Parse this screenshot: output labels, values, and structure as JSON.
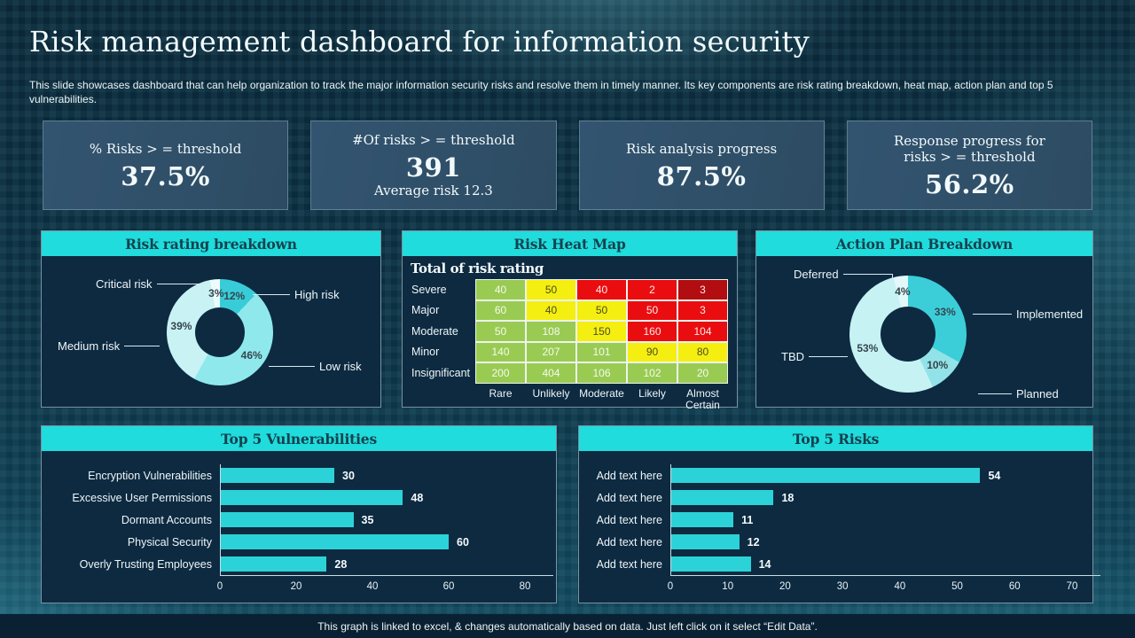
{
  "slide": {
    "title": "Risk management dashboard for information security",
    "subtitle": "This slide showcases dashboard that can help organization to track the major information security risks and resolve them in timely manner. Its key components are risk rating breakdown, heat map, action plan and top 5 vulnerabilities.",
    "footer": "This graph is linked to excel, & changes automatically based on data. Just left click on it select “Edit Data”."
  },
  "kpis": [
    {
      "label": "% Risks > = threshold",
      "value": "37.5%",
      "sub": ""
    },
    {
      "label": "#Of risks > = threshold",
      "value": "391",
      "sub": "Average risk 12.3"
    },
    {
      "label": "Risk analysis progress",
      "value": "87.5%",
      "sub": ""
    },
    {
      "label": "Response progress for risks > = threshold",
      "value": "56.2%",
      "sub": ""
    }
  ],
  "panels": {
    "risk_rating": {
      "title": "Risk rating breakdown"
    },
    "heat_map": {
      "title": "Risk Heat Map"
    },
    "action_plan": {
      "title": "Action Plan Breakdown"
    },
    "top_vulnerabilities": {
      "title": "Top 5 Vulnerabilities"
    },
    "top_risks": {
      "title": "Top 5 Risks"
    }
  },
  "chart_data": [
    {
      "type": "pie",
      "title": "Risk rating breakdown",
      "legend_position": "callouts",
      "slices": [
        {
          "label": "High risk",
          "value": 12,
          "color": "#38ccd8"
        },
        {
          "label": "Low risk",
          "value": 46,
          "color": "#8fe9ec"
        },
        {
          "label": "Medium risk",
          "value": 39,
          "color": "#c9f2f4"
        },
        {
          "label": "Critical risk",
          "value": 3,
          "color": "#edfbfc"
        }
      ]
    },
    {
      "type": "heatmap",
      "title": "Total of risk rating",
      "rows": [
        "Severe",
        "Major",
        "Moderate",
        "Minor",
        "Insignificant"
      ],
      "columns": [
        "Rare",
        "Unlikely",
        "Moderate",
        "Likely",
        "Almost Certain"
      ],
      "values": [
        [
          40,
          50,
          40,
          2,
          3
        ],
        [
          60,
          40,
          50,
          50,
          3
        ],
        [
          50,
          108,
          150,
          160,
          104
        ],
        [
          140,
          207,
          101,
          90,
          80
        ],
        [
          200,
          404,
          106,
          102,
          20
        ]
      ],
      "levels": [
        [
          "g",
          "y",
          "r",
          "r",
          "d"
        ],
        [
          "g",
          "y",
          "y",
          "r",
          "r"
        ],
        [
          "g",
          "g",
          "y",
          "r",
          "r"
        ],
        [
          "g",
          "g",
          "g",
          "y",
          "y"
        ],
        [
          "g",
          "g",
          "g",
          "g",
          "g"
        ]
      ],
      "palette": {
        "g": "#99cb52",
        "y": "#f4ef10",
        "r": "#ea0d10",
        "d": "#b20d10"
      }
    },
    {
      "type": "pie",
      "title": "Action Plan Breakdown",
      "legend_position": "callouts",
      "slices": [
        {
          "label": "Implemented",
          "value": 33,
          "color": "#3bced9"
        },
        {
          "label": "Planned",
          "value": 10,
          "color": "#92e3e7"
        },
        {
          "label": "TBD",
          "value": 53,
          "color": "#c6f2f4"
        },
        {
          "label": "Deferred",
          "value": 4,
          "color": "#e2f8fa"
        }
      ]
    },
    {
      "type": "bar",
      "title": "Top 5 Vulnerabilities",
      "orientation": "horizontal",
      "categories": [
        "Encryption Vulnerabilities",
        "Excessive User Permissions",
        "Dormant Accounts",
        "Physical Security",
        "Overly Trusting Employees"
      ],
      "values": [
        30,
        48,
        35,
        60,
        28
      ],
      "bar_color": "#2bd3d8",
      "xlim": [
        0,
        80
      ],
      "ticks": [
        0,
        20,
        40,
        60,
        80
      ],
      "grid": false
    },
    {
      "type": "bar",
      "title": "Top 5 Risks",
      "orientation": "horizontal",
      "categories": [
        "Add text here",
        "Add text here",
        "Add text here",
        "Add text here",
        "Add text here"
      ],
      "values": [
        54,
        18,
        11,
        12,
        14
      ],
      "bar_color": "#2bd3d8",
      "xlim": [
        0,
        70
      ],
      "ticks": [
        0,
        10,
        20,
        30,
        40,
        50,
        60,
        70
      ],
      "grid": false
    }
  ],
  "colors": {
    "header_bar": "#20dcdc",
    "header_text": "#14414f",
    "panel_bg": "#0d2a41",
    "card_bg": "#2f4f67",
    "accent_bar": "#2bd3d8",
    "background_base": "#0c3143"
  }
}
